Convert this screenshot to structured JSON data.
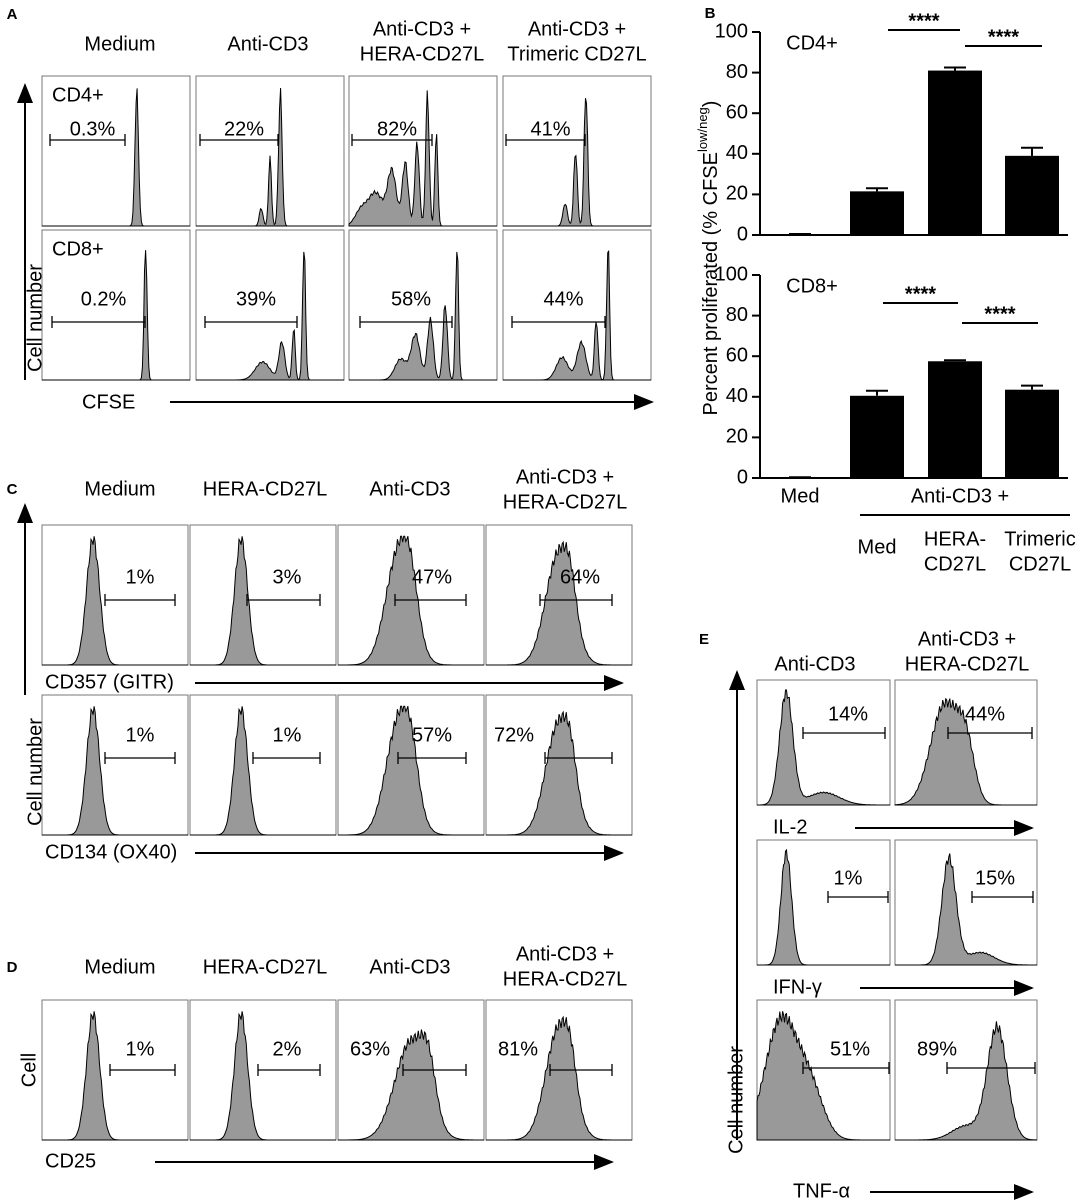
{
  "panel_a": {
    "letter": "A",
    "columns": [
      [
        "Medium"
      ],
      [
        "Anti-CD3"
      ],
      [
        "Anti-CD3 +",
        "HERA-CD27L"
      ],
      [
        "Anti-CD3 +",
        "Trimeric CD27L"
      ]
    ],
    "rows": [
      {
        "label": "CD4+",
        "percents": [
          "0.3%",
          "22%",
          "82%",
          "41%"
        ]
      },
      {
        "label": "CD8+",
        "percents": [
          "0.2%",
          "39%",
          "58%",
          "44%"
        ]
      }
    ],
    "y_label": "Cell number",
    "x_label": "CFSE"
  },
  "panel_b": {
    "letter": "B",
    "ylabel": "Percent proliferated (% CFSE",
    "ylabel_sup": "low/neg",
    "ylabel_end": ")",
    "group_label": "Anti-CD3 +"
  },
  "chart_data": [
    {
      "type": "bar",
      "label": "CD4+",
      "categories": [
        null,
        null,
        null,
        null
      ],
      "values": [
        0.3,
        21.5,
        81,
        39
      ],
      "errors": [
        0.2,
        1.5,
        1.5,
        4
      ],
      "color": "#000000",
      "ylim": [
        0,
        100
      ],
      "yticks": [
        0,
        20,
        40,
        60,
        80,
        100
      ],
      "annotations": [
        "****",
        "****"
      ]
    },
    {
      "type": "bar",
      "label": "CD8+",
      "categories": [
        [
          "Med"
        ],
        [
          "Med"
        ],
        [
          "HERA-",
          "CD27L"
        ],
        [
          "Trimeric",
          "CD27L"
        ]
      ],
      "values": [
        0.2,
        40.5,
        57.5,
        43.5
      ],
      "errors": [
        0.2,
        2.5,
        0.5,
        2
      ],
      "color": "#000000",
      "ylim": [
        0,
        100
      ],
      "yticks": [
        0,
        20,
        40,
        60,
        80,
        100
      ],
      "annotations": [
        "****",
        "****"
      ]
    }
  ],
  "panel_c": {
    "letter": "C",
    "columns": [
      [
        "Medium"
      ],
      [
        "HERA-CD27L"
      ],
      [
        "Anti-CD3"
      ],
      [
        "Anti-CD3 +",
        "HERA-CD27L"
      ]
    ],
    "rows": [
      {
        "x_label": "CD357 (GITR)",
        "percents": [
          "1%",
          "3%",
          "47%",
          "64%"
        ]
      },
      {
        "x_label": "CD134 (OX40)",
        "percents": [
          "1%",
          "1%",
          "57%",
          "72%"
        ]
      }
    ],
    "y_label": "Cell number"
  },
  "panel_d": {
    "letter": "D",
    "columns": [
      [
        "Medium"
      ],
      [
        "HERA-CD27L"
      ],
      [
        "Anti-CD3"
      ],
      [
        "Anti-CD3 +",
        "HERA-CD27L"
      ]
    ],
    "percents": [
      "1%",
      "2%",
      "63%",
      "81%"
    ],
    "y_label": "Cell",
    "x_label": "CD25"
  },
  "panel_e": {
    "letter": "E",
    "columns": [
      [
        "Anti-CD3"
      ],
      [
        "Anti-CD3 +",
        "HERA-CD27L"
      ]
    ],
    "rows": [
      {
        "x_label": "IL-2",
        "percents": [
          "14%",
          "44%"
        ]
      },
      {
        "x_label": "IFN-γ",
        "percents": [
          "1%",
          "15%"
        ]
      },
      {
        "x_label": "TNF-α",
        "percents": [
          "51%",
          "89%"
        ]
      }
    ],
    "y_label": "Cell number"
  }
}
